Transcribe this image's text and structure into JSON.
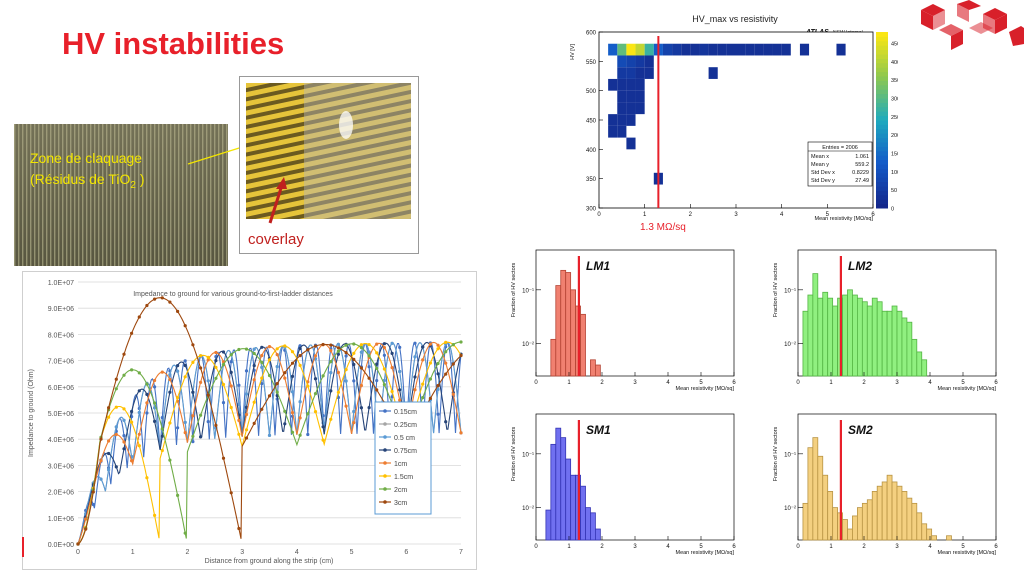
{
  "slide": {
    "title": "HV instabilities",
    "zone_line1": "Zone de claquage",
    "zone_line2_pre": "(Résidus de TiO",
    "zone_sub": "2",
    "zone_line2_post": " )",
    "coverlay_label": "coverlay",
    "threshold_label": "1.3 MΩ/sq"
  },
  "colors": {
    "title": "#e8202a",
    "threshold_line": "#e8202a",
    "LM1": "#f08070",
    "LM2": "#90f080",
    "SM1": "#7070f0",
    "SM2": "#f4d080",
    "logo": "#d8202a"
  },
  "chart_data": [
    {
      "id": "impedance",
      "type": "line",
      "title": "Impedance to ground for various  ground-to-first-ladder distances",
      "xlabel": "Distance from ground along the strip (cm)",
      "ylabel": "Impedance to ground (Ohm)",
      "xlim": [
        0,
        7
      ],
      "ylim": [
        0,
        10000000
      ],
      "x_ticks": [
        "0",
        "1",
        "2",
        "3",
        "4",
        "5",
        "6",
        "7"
      ],
      "y_ticks": [
        "0.0E+00",
        "1.0E+06",
        "2.0E+06",
        "3.0E+06",
        "4.0E+06",
        "5.0E+06",
        "6.0E+06",
        "7.0E+06",
        "8.0E+06",
        "9.0E+06",
        "1.0E+07"
      ],
      "grid": "horizontal",
      "legend_position": "right",
      "series": [
        {
          "name": "0.15cm",
          "color": "#4472c4",
          "period": 0.3
        },
        {
          "name": "0.25cm",
          "color": "#a5a5a5",
          "period": 0.5
        },
        {
          "name": "0.5 cm",
          "color": "#5b9bd5",
          "period": 0.5
        },
        {
          "name": "0.75cm",
          "color": "#264478",
          "period": 0.75
        },
        {
          "name": "1cm",
          "color": "#ed7d31",
          "period": 1.0
        },
        {
          "name": "1.5cm",
          "color": "#ffc000",
          "period": 1.5
        },
        {
          "name": "2cm",
          "color": "#70ad47",
          "period": 2.0
        },
        {
          "name": "3cm",
          "color": "#9e480e",
          "period": 3.0
        }
      ],
      "peak_values": [
        {
          "series": "3cm",
          "x": 1.85,
          "y": 9400000
        },
        {
          "series": "2cm",
          "x": 1.2,
          "y": 6650000
        },
        {
          "series": "1.5cm",
          "x": 0.9,
          "y": 5250000
        }
      ]
    },
    {
      "id": "hvmax",
      "type": "heatmap",
      "title": "HV_max vs resistivity",
      "tag": "ATLAS",
      "tag_note": "NSW Internal",
      "xlabel": "Mean resistivity [MΩ/sq]",
      "ylabel": "HV [V]",
      "xlim": [
        0,
        6
      ],
      "ylim": [
        300,
        600
      ],
      "x_ticks": [
        "0",
        "1",
        "2",
        "3",
        "4",
        "5",
        "6"
      ],
      "y_ticks": [
        "300",
        "350",
        "400",
        "450",
        "500",
        "550",
        "600"
      ],
      "colorbar_ticks": [
        "0",
        "50",
        "100",
        "150",
        "200",
        "250",
        "300",
        "350",
        "400",
        "450"
      ],
      "threshold_x": 1.3,
      "stats": {
        "title": "Entries = 2006",
        "rows": [
          {
            "k": "Mean x",
            "v": "1.061"
          },
          {
            "k": "Mean y",
            "v": "559.2"
          },
          {
            "k": "Std Dev x",
            "v": "0.8229"
          },
          {
            "k": "Std Dev y",
            "v": "27.49"
          }
        ]
      },
      "cells": [
        {
          "x": 0.5,
          "y": 570,
          "v": 300
        },
        {
          "x": 0.7,
          "y": 570,
          "v": 460
        },
        {
          "x": 0.9,
          "y": 570,
          "v": 400
        },
        {
          "x": 1.1,
          "y": 570,
          "v": 260
        },
        {
          "x": 0.3,
          "y": 570,
          "v": 120
        },
        {
          "x": 1.3,
          "y": 570,
          "v": 120
        },
        {
          "x": 1.5,
          "y": 570,
          "v": 60
        },
        {
          "x": 1.7,
          "y": 570,
          "v": 40
        },
        {
          "x": 1.9,
          "y": 570,
          "v": 20
        },
        {
          "x": 2.1,
          "y": 570,
          "v": 20
        },
        {
          "x": 2.3,
          "y": 570,
          "v": 30
        },
        {
          "x": 2.5,
          "y": 570,
          "v": 20
        },
        {
          "x": 2.7,
          "y": 570,
          "v": 20
        },
        {
          "x": 2.9,
          "y": 570,
          "v": 20
        },
        {
          "x": 3.1,
          "y": 570,
          "v": 20
        },
        {
          "x": 3.3,
          "y": 570,
          "v": 20
        },
        {
          "x": 3.5,
          "y": 570,
          "v": 20
        },
        {
          "x": 3.7,
          "y": 570,
          "v": 20
        },
        {
          "x": 3.9,
          "y": 570,
          "v": 20
        },
        {
          "x": 4.1,
          "y": 570,
          "v": 20
        },
        {
          "x": 4.5,
          "y": 570,
          "v": 20
        },
        {
          "x": 5.3,
          "y": 570,
          "v": 20
        },
        {
          "x": 0.5,
          "y": 550,
          "v": 80
        },
        {
          "x": 0.7,
          "y": 550,
          "v": 60
        },
        {
          "x": 0.9,
          "y": 550,
          "v": 40
        },
        {
          "x": 1.1,
          "y": 550,
          "v": 20
        },
        {
          "x": 0.5,
          "y": 530,
          "v": 40
        },
        {
          "x": 0.7,
          "y": 530,
          "v": 40
        },
        {
          "x": 0.9,
          "y": 530,
          "v": 20
        },
        {
          "x": 1.1,
          "y": 530,
          "v": 20
        },
        {
          "x": 2.5,
          "y": 530,
          "v": 20
        },
        {
          "x": 0.3,
          "y": 510,
          "v": 20
        },
        {
          "x": 0.5,
          "y": 510,
          "v": 20
        },
        {
          "x": 0.7,
          "y": 510,
          "v": 20
        },
        {
          "x": 0.9,
          "y": 510,
          "v": 20
        },
        {
          "x": 0.5,
          "y": 490,
          "v": 20
        },
        {
          "x": 0.7,
          "y": 490,
          "v": 20
        },
        {
          "x": 0.9,
          "y": 490,
          "v": 20
        },
        {
          "x": 0.5,
          "y": 470,
          "v": 20
        },
        {
          "x": 0.7,
          "y": 470,
          "v": 20
        },
        {
          "x": 0.9,
          "y": 470,
          "v": 20
        },
        {
          "x": 0.3,
          "y": 450,
          "v": 20
        },
        {
          "x": 0.5,
          "y": 450,
          "v": 20
        },
        {
          "x": 0.7,
          "y": 450,
          "v": 20
        },
        {
          "x": 0.3,
          "y": 430,
          "v": 20
        },
        {
          "x": 0.5,
          "y": 430,
          "v": 20
        },
        {
          "x": 0.7,
          "y": 410,
          "v": 20
        },
        {
          "x": 1.3,
          "y": 350,
          "v": 20
        }
      ]
    },
    {
      "id": "LM1",
      "type": "bar",
      "label": "LM1",
      "xlabel": "Mean resistivity [MΩ/sq]",
      "ylabel": "Fraction of HV sectors",
      "xlim": [
        0,
        6
      ],
      "x_ticks": [
        "0",
        "1",
        "2",
        "3",
        "4",
        "5",
        "6"
      ],
      "y_scale": "log",
      "y_ticks": [
        "10⁻¹",
        "10⁻²"
      ],
      "threshold_x": 1.3,
      "bins_start": 0.0,
      "bin_width": 0.15,
      "values": [
        0,
        0,
        0,
        0.012,
        0.12,
        0.23,
        0.21,
        0.1,
        0.05,
        0.035,
        0,
        0.005,
        0.004
      ]
    },
    {
      "id": "LM2",
      "type": "bar",
      "label": "LM2",
      "xlabel": "Mean resistivity [MΩ/sq]",
      "ylabel": "Fraction of HV sectors",
      "xlim": [
        0,
        6
      ],
      "x_ticks": [
        "0",
        "1",
        "2",
        "3",
        "4",
        "5",
        "6"
      ],
      "y_scale": "log",
      "y_ticks": [
        "10⁻¹",
        "10⁻²"
      ],
      "threshold_x": 1.3,
      "bins_start": 0.15,
      "bin_width": 0.15,
      "values": [
        0.04,
        0.08,
        0.2,
        0.07,
        0.09,
        0.07,
        0.05,
        0.07,
        0.08,
        0.1,
        0.08,
        0.07,
        0.06,
        0.05,
        0.07,
        0.06,
        0.04,
        0.04,
        0.05,
        0.04,
        0.03,
        0.025,
        0.012,
        0.007,
        0.005
      ]
    },
    {
      "id": "SM1",
      "type": "bar",
      "label": "SM1",
      "xlabel": "Mean resistivity [MΩ/sq]",
      "ylabel": "Fraction of HV sectors",
      "xlim": [
        0,
        6
      ],
      "x_ticks": [
        "0",
        "1",
        "2",
        "3",
        "4",
        "5",
        "6"
      ],
      "y_scale": "log",
      "y_ticks": [
        "10⁻¹",
        "10⁻²"
      ],
      "threshold_x": 1.3,
      "bins_start": 0.15,
      "bin_width": 0.15,
      "values": [
        0,
        0.009,
        0.15,
        0.3,
        0.2,
        0.08,
        0.04,
        0.04,
        0.025,
        0.01,
        0.008,
        0.004
      ]
    },
    {
      "id": "SM2",
      "type": "bar",
      "label": "SM2",
      "xlabel": "Mean resistivity [MΩ/sq]",
      "ylabel": "Fraction of HV sectors",
      "xlim": [
        0,
        6
      ],
      "x_ticks": [
        "0",
        "1",
        "2",
        "3",
        "4",
        "5",
        "6"
      ],
      "y_scale": "log",
      "y_ticks": [
        "10⁻¹",
        "10⁻²"
      ],
      "threshold_x": 1.3,
      "bins_start": 0.15,
      "bin_width": 0.15,
      "values": [
        0.012,
        0.13,
        0.2,
        0.09,
        0.04,
        0.02,
        0.01,
        0.008,
        0.006,
        0.004,
        0.007,
        0.01,
        0.012,
        0.014,
        0.02,
        0.025,
        0.03,
        0.04,
        0.03,
        0.025,
        0.02,
        0.015,
        0.012,
        0.008,
        0.005,
        0.004,
        0.003,
        0.002,
        0.002,
        0.003,
        0.002,
        0.002,
        0.002,
        0.002
      ]
    }
  ]
}
